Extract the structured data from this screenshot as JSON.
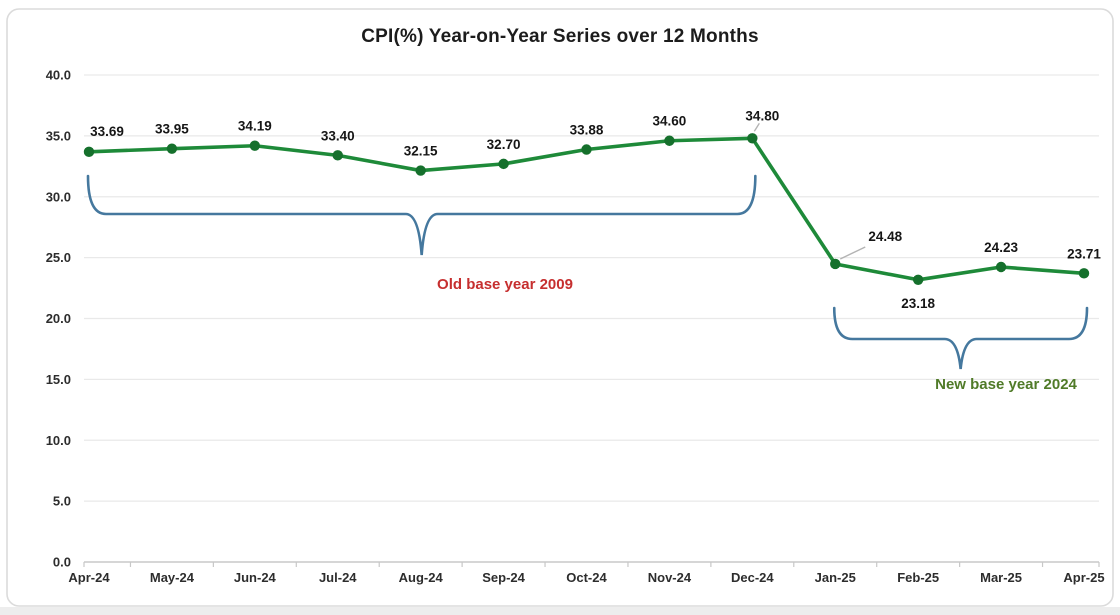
{
  "chart_data": {
    "type": "line",
    "title": "CPI(%) Year-on-Year Series over 12 Months",
    "categories": [
      "Apr-24",
      "May-24",
      "Jun-24",
      "Jul-24",
      "Aug-24",
      "Sep-24",
      "Oct-24",
      "Nov-24",
      "Dec-24",
      "Jan-25",
      "Feb-25",
      "Mar-25",
      "Apr-25"
    ],
    "series": [
      {
        "name": "CPI(%) Year-on-Year",
        "values": [
          33.69,
          33.95,
          34.19,
          33.4,
          32.15,
          32.7,
          33.88,
          34.6,
          34.8,
          24.48,
          23.18,
          24.23,
          23.71
        ]
      }
    ],
    "data_labels": [
      "33.69",
      "33.95",
      "34.19",
      "33.40",
      "32.15",
      "32.70",
      "33.88",
      "34.60",
      "34.80",
      "24.48",
      "23.18",
      "24.23",
      "23.71"
    ],
    "label_placements": [
      "above-right",
      "above",
      "above",
      "above",
      "above",
      "above",
      "above",
      "above",
      "leader-above",
      "leader-above-right",
      "below",
      "above",
      "above"
    ],
    "xlabel": "",
    "ylabel": "",
    "ylim": [
      0,
      40
    ],
    "ytick_labels": [
      "0.0",
      "5.0",
      "10.0",
      "15.0",
      "20.0",
      "25.0",
      "30.0",
      "35.0",
      "40.0"
    ],
    "grid": true,
    "legend": "none",
    "line_color": "#1E8A39",
    "marker_color": "#15702C",
    "brace_color": "#45789E",
    "annotations": [
      {
        "text": "Old base year 2009",
        "color": "#C62F2F",
        "range": [
          "Apr-24",
          "Dec-24"
        ]
      },
      {
        "text": "New base year 2024",
        "color": "#507B28",
        "range": [
          "Jan-25",
          "Apr-25"
        ]
      }
    ]
  }
}
